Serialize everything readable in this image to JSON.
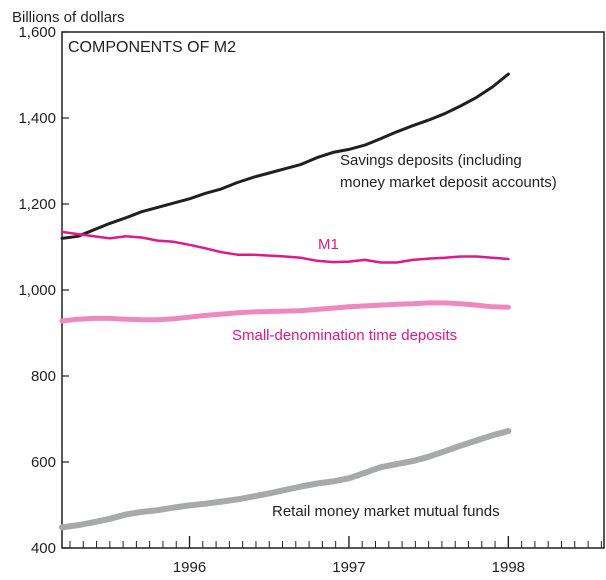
{
  "chart_data": {
    "type": "line",
    "title": "COMPONENTS OF M2",
    "ylabel": "Billions of dollars",
    "xlabel": "",
    "ylim": [
      400,
      1600
    ],
    "yticks": [
      400,
      600,
      800,
      1000,
      1200,
      1400,
      1600
    ],
    "ytick_labels": [
      "400",
      "600",
      "800",
      "1,000",
      "1,200",
      "1,400",
      "1,600"
    ],
    "xlim": [
      1995.2,
      1998.6
    ],
    "xticks": [
      1996,
      1997,
      1998
    ],
    "xtick_labels": [
      "1996",
      "1997",
      "1998"
    ],
    "grid": false,
    "legend": "none",
    "series": [
      {
        "name": "Savings deposits (including money market deposit accounts)",
        "color": "#231f20",
        "x": [
          1995.2,
          1995.3,
          1995.4,
          1995.5,
          1995.6,
          1995.7,
          1995.8,
          1995.9,
          1996.0,
          1996.1,
          1996.2,
          1996.3,
          1996.4,
          1996.5,
          1996.6,
          1996.7,
          1996.8,
          1996.9,
          1997.0,
          1997.1,
          1997.2,
          1997.3,
          1997.4,
          1997.5,
          1997.6,
          1997.7,
          1997.8,
          1997.9,
          1998.0
        ],
        "values": [
          1120,
          1125,
          1140,
          1155,
          1168,
          1182,
          1192,
          1202,
          1212,
          1225,
          1235,
          1250,
          1262,
          1272,
          1282,
          1292,
          1308,
          1320,
          1327,
          1337,
          1352,
          1368,
          1382,
          1395,
          1410,
          1428,
          1448,
          1472,
          1502
        ]
      },
      {
        "name": "M1",
        "color": "#e0198a",
        "x": [
          1995.2,
          1995.3,
          1995.4,
          1995.5,
          1995.6,
          1995.7,
          1995.8,
          1995.9,
          1996.0,
          1996.1,
          1996.2,
          1996.3,
          1996.4,
          1996.5,
          1996.6,
          1996.7,
          1996.8,
          1996.9,
          1997.0,
          1997.1,
          1997.2,
          1997.3,
          1997.4,
          1997.5,
          1997.6,
          1997.7,
          1997.8,
          1997.9,
          1998.0
        ],
        "values": [
          1135,
          1130,
          1125,
          1120,
          1125,
          1122,
          1115,
          1112,
          1105,
          1097,
          1088,
          1082,
          1082,
          1080,
          1078,
          1075,
          1068,
          1065,
          1066,
          1070,
          1064,
          1064,
          1070,
          1073,
          1075,
          1078,
          1078,
          1075,
          1072
        ]
      },
      {
        "name": "Small-denomination time deposits",
        "color": "#f088c0",
        "x": [
          1995.2,
          1995.3,
          1995.4,
          1995.5,
          1995.6,
          1995.7,
          1995.8,
          1995.9,
          1996.0,
          1996.1,
          1996.2,
          1996.3,
          1996.4,
          1996.5,
          1996.6,
          1996.7,
          1996.8,
          1996.9,
          1997.0,
          1997.1,
          1997.2,
          1997.3,
          1997.4,
          1997.5,
          1997.6,
          1997.7,
          1997.8,
          1997.9,
          1998.0
        ],
        "values": [
          928,
          932,
          934,
          934,
          932,
          931,
          931,
          933,
          937,
          941,
          944,
          947,
          949,
          950,
          951,
          952,
          955,
          958,
          961,
          963,
          965,
          967,
          968,
          970,
          970,
          968,
          965,
          961,
          960
        ]
      },
      {
        "name": "Retail money market mutual funds",
        "color": "#a7a9ac",
        "x": [
          1995.2,
          1995.3,
          1995.4,
          1995.5,
          1995.6,
          1995.7,
          1995.8,
          1995.9,
          1996.0,
          1996.1,
          1996.2,
          1996.3,
          1996.4,
          1996.5,
          1996.6,
          1996.7,
          1996.8,
          1996.9,
          1997.0,
          1997.1,
          1997.2,
          1997.3,
          1997.4,
          1997.5,
          1997.6,
          1997.7,
          1997.8,
          1997.9,
          1998.0
        ],
        "values": [
          448,
          453,
          460,
          468,
          478,
          484,
          488,
          494,
          499,
          503,
          508,
          513,
          520,
          527,
          535,
          543,
          550,
          555,
          562,
          575,
          588,
          595,
          602,
          612,
          625,
          638,
          650,
          662,
          672
        ]
      }
    ],
    "annotations": [
      {
        "lines": [
          "Savings deposits (including",
          "money market deposit accounts)"
        ],
        "series": 0,
        "color": "#231f20"
      },
      {
        "lines": [
          "M1"
        ],
        "series": 1,
        "color": "#e0198a"
      },
      {
        "lines": [
          "Small-denomination time deposits"
        ],
        "series": 2,
        "color": "#e0198a"
      },
      {
        "lines": [
          "Retail money market mutual funds"
        ],
        "series": 3,
        "color": "#231f20"
      }
    ]
  }
}
